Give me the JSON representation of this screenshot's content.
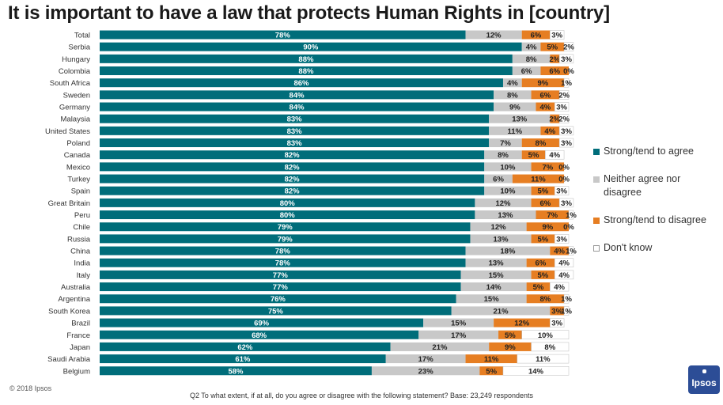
{
  "title": "It is important to have a law that protects Human Rights in [country]",
  "footnote": "Q2 To what extent, if at all, do you agree or disagree with the following statement? Base: 23,249 respondents",
  "copyright": "© 2018 Ipsos",
  "logo_text": "Ipsos",
  "colors": {
    "agree": "#006d7a",
    "neither": "#c8c8c8",
    "disagree": "#e67e22",
    "dontknow": "#ffffff",
    "logo": "#2c4d96"
  },
  "chart_data": {
    "type": "bar",
    "orientation": "horizontal",
    "stacked": true,
    "title": "It is important to have a law that protects Human Rights in [country]",
    "xlim": [
      0,
      100
    ],
    "unit": "%",
    "legend_position": "right",
    "categories": [
      "Total",
      "Serbia",
      "Hungary",
      "Colombia",
      "South Africa",
      "Sweden",
      "Germany",
      "Malaysia",
      "United States",
      "Poland",
      "Canada",
      "Mexico",
      "Turkey",
      "Spain",
      "Great Britain",
      "Peru",
      "Chile",
      "Russia",
      "China",
      "India",
      "Italy",
      "Australia",
      "Argentina",
      "South Korea",
      "Brazil",
      "France",
      "Japan",
      "Saudi Arabia",
      "Belgium"
    ],
    "series": [
      {
        "name": "Strong/tend to agree",
        "key": "agree",
        "values": [
          78,
          90,
          88,
          88,
          86,
          84,
          84,
          83,
          83,
          83,
          82,
          82,
          82,
          82,
          80,
          80,
          79,
          79,
          78,
          78,
          77,
          77,
          76,
          75,
          69,
          68,
          62,
          61,
          58
        ]
      },
      {
        "name": "Neither agree nor disagree",
        "key": "neither",
        "values": [
          12,
          4,
          8,
          6,
          4,
          8,
          9,
          13,
          11,
          7,
          8,
          10,
          6,
          10,
          12,
          13,
          12,
          13,
          18,
          13,
          15,
          14,
          15,
          21,
          15,
          17,
          21,
          17,
          23
        ]
      },
      {
        "name": "Strong/tend to disagree",
        "key": "disagree",
        "values": [
          6,
          5,
          2,
          6,
          9,
          6,
          4,
          2,
          4,
          8,
          5,
          7,
          11,
          5,
          6,
          7,
          9,
          5,
          4,
          6,
          5,
          5,
          8,
          3,
          12,
          5,
          9,
          11,
          5
        ]
      },
      {
        "name": "Don't know",
        "key": "dontknow",
        "values": [
          3,
          2,
          3,
          0,
          1,
          2,
          3,
          2,
          3,
          3,
          4,
          0,
          0,
          3,
          3,
          1,
          0,
          3,
          1,
          4,
          4,
          4,
          1,
          1,
          3,
          10,
          8,
          11,
          14
        ]
      }
    ]
  }
}
